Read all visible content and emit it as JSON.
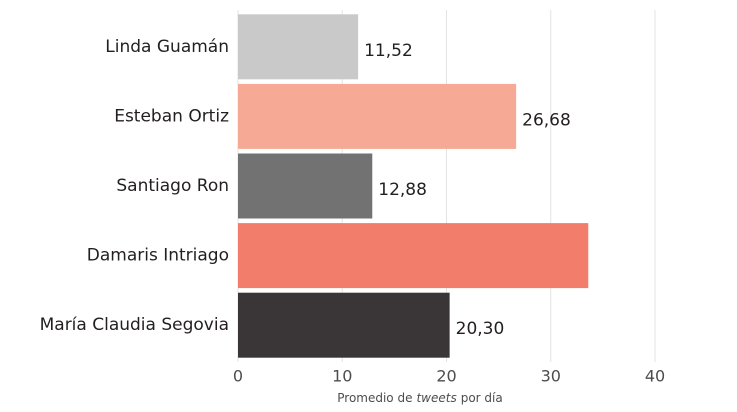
{
  "chart_data": {
    "type": "barh",
    "categories": [
      "Linda Guamán",
      "Esteban Ortiz",
      "Santiago Ron",
      "Damaris Intriago",
      "María Claudia Segovia"
    ],
    "values": [
      11.52,
      26.68,
      12.88,
      33.6,
      20.3
    ],
    "value_labels": [
      "11,52",
      "26,68",
      "12,88",
      null,
      "20,30"
    ],
    "colors": [
      "#c9c9ca",
      "#f6a995",
      "#737273",
      "#f37d6b",
      "#3a3536"
    ],
    "xlim": [
      0,
      40
    ],
    "xticks": [
      0,
      10,
      20,
      30,
      40
    ],
    "grid": true,
    "x_label_parts": [
      "Promedio de",
      "tweets",
      "por día"
    ]
  }
}
